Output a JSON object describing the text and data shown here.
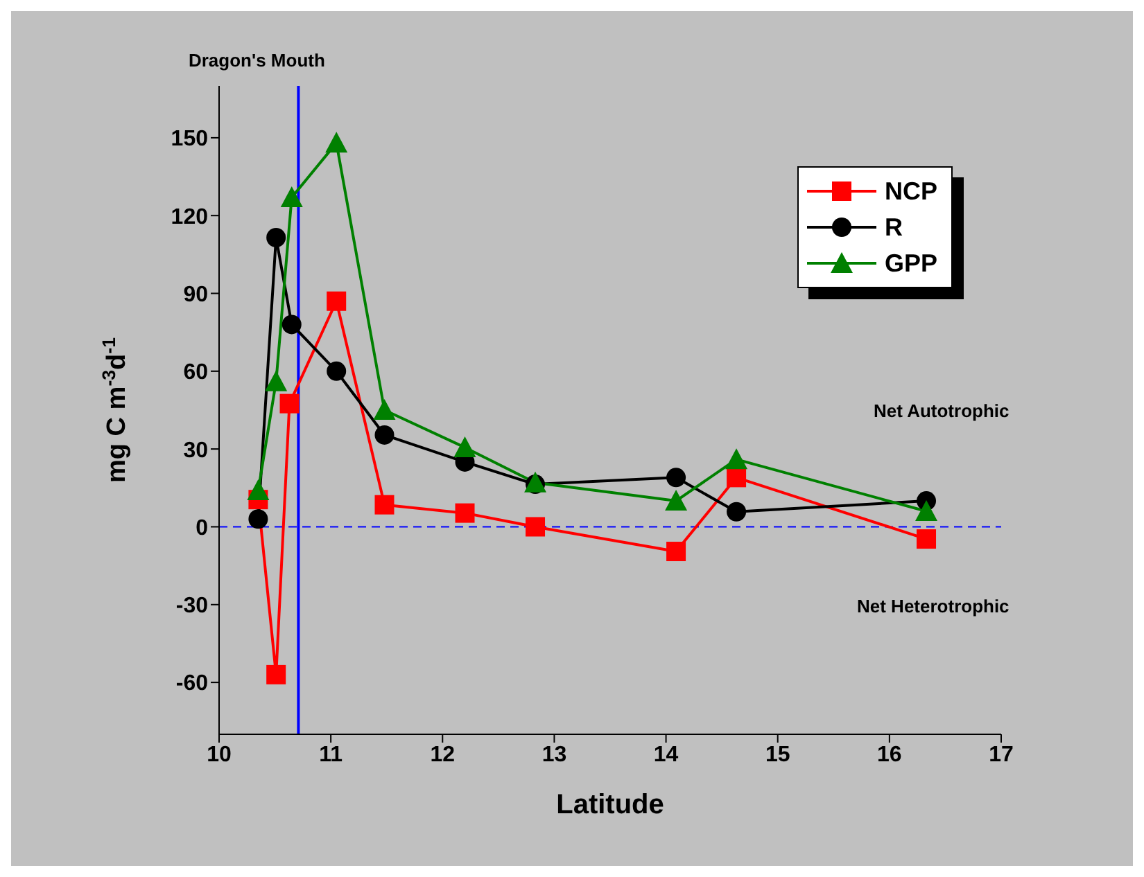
{
  "chart_data": {
    "type": "line",
    "xlabel": "Latitude",
    "ylabel": "mg C m$^{-3}$d$^{-1}$",
    "xlim": [
      10,
      17
    ],
    "xticks": [
      10,
      11,
      12,
      13,
      14,
      15,
      16,
      17
    ],
    "ylim": [
      -80,
      170
    ],
    "yticks": [
      -60,
      -30,
      0,
      30,
      60,
      90,
      120,
      150
    ],
    "series": [
      {
        "name": "NCP",
        "color": "#ff0000",
        "marker": "square",
        "x": [
          10.35,
          10.51,
          10.63,
          11.05,
          11.48,
          12.2,
          12.83,
          14.09,
          14.63,
          16.33
        ],
        "values": [
          10.5,
          -57,
          47.5,
          87,
          8.5,
          5.3,
          0,
          -9.5,
          19,
          -4.7
        ]
      },
      {
        "name": "R",
        "color": "#000000",
        "marker": "circle",
        "x": [
          10.35,
          10.51,
          10.65,
          11.05,
          11.48,
          12.2,
          12.83,
          14.09,
          14.63,
          16.33
        ],
        "values": [
          3,
          111.5,
          78,
          60,
          35.4,
          25,
          16.4,
          19,
          5.8,
          10
        ]
      },
      {
        "name": "GPP",
        "color": "#008000",
        "marker": "triangle",
        "x": [
          10.35,
          10.51,
          10.65,
          11.05,
          11.48,
          12.2,
          12.83,
          14.09,
          14.63,
          16.33
        ],
        "values": [
          14,
          56,
          127,
          148,
          45,
          30.6,
          17,
          10,
          26,
          6
        ]
      }
    ],
    "ref_lines": [
      {
        "axis": "x",
        "value": 10.71,
        "label": "Dragon's Mouth",
        "color": "#0000ff",
        "line_style": "solid"
      },
      {
        "axis": "y",
        "value": 0,
        "color": "#0000ff",
        "line_style": "dashed"
      }
    ],
    "annotations": [
      "Net Autotrophic",
      "Net Heterotrophic"
    ],
    "legend": "top right"
  }
}
